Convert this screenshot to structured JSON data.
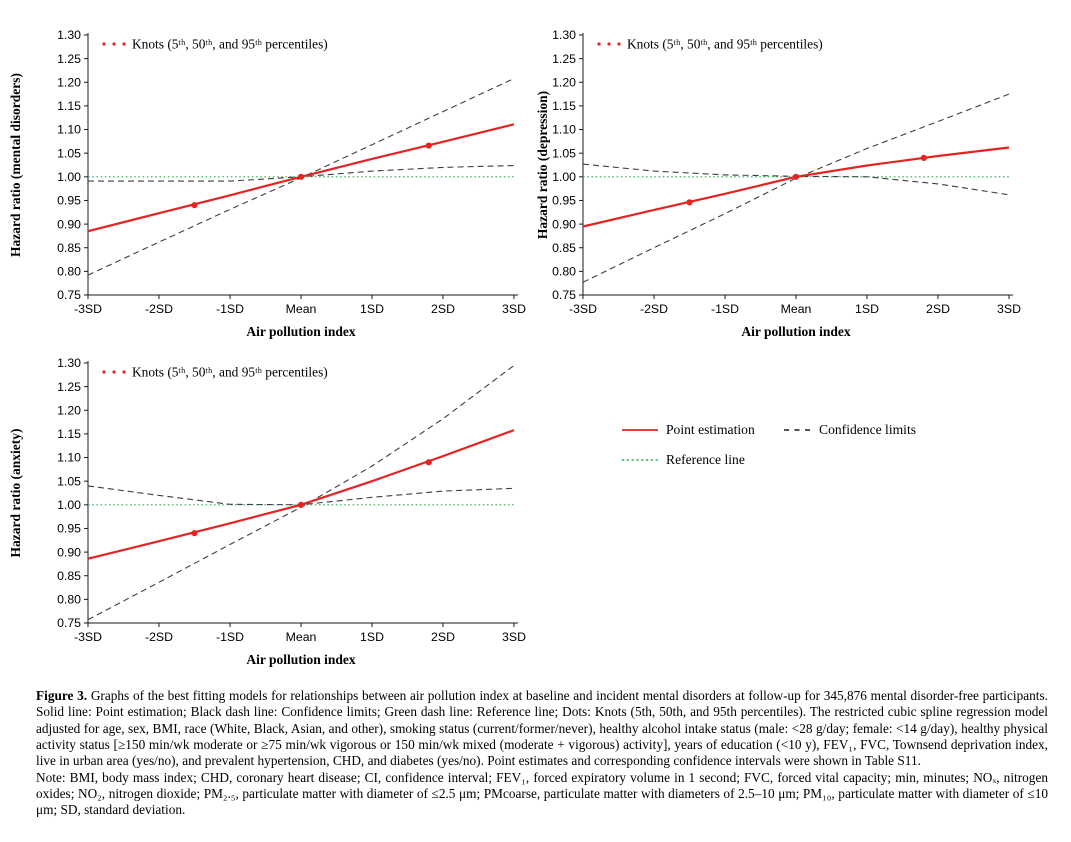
{
  "colors": {
    "point": "#e62320",
    "confidence": "#3f3f3f",
    "reference": "#2fae54",
    "axis": "#1a1a1a"
  },
  "legend": {
    "point_estimation": "Point estimation",
    "confidence_limits": "Confidence limits",
    "reference_line": "Reference line"
  },
  "caption": {
    "label": "Figure 3.",
    "body": "Graphs of the best fitting models for relationships between air pollution index at baseline and incident mental disorders at follow-up for 345,876 mental disorder-free participants. Solid line: Point estimation; Black dash line: Confidence limits; Green dash line: Reference line; Dots: Knots (5th, 50th, and 95th percentiles). The restricted cubic spline regression model adjusted for age, sex, BMI, race (White, Black, Asian, and other), smoking status (current/former/never), healthy alcohol intake status (male: <28 g/day; female: <14 g/day), healthy physical activity status [≥150 min/wk moderate or ≥75 min/wk vigorous or 150 min/wk mixed (moderate + vigorous) activity], years of education (<10 y), FEV₁, FVC, Townsend deprivation index, live in urban area (yes/no), and prevalent hypertension, CHD, and diabetes (yes/no). Point estimates and corresponding confidence intervals were shown in Table S11.",
    "note": "Note: BMI, body mass index; CHD, coronary heart disease; CI, confidence interval; FEV₁, forced expiratory volume in 1 second; FVC, forced vital capacity; min, minutes; NOₓ, nitrogen oxides; NO₂, nitrogen dioxide; PM₂.₅, particulate matter with diameter of ≤2.5 μm; PMcoarse, particulate matter with diameters of 2.5–10 μm; PM₁₀, particulate matter with diameter of ≤10 μm; SD, standard deviation."
  },
  "chart_data": [
    {
      "type": "line",
      "title": "",
      "ylabel": "Hazard ratio (mental disorders)",
      "xlabel": "Air pollution index",
      "x": [
        -3,
        -2,
        -1,
        0,
        1,
        2,
        3
      ],
      "x_tick_labels": [
        "-3SD",
        "-2SD",
        "-1SD",
        "Mean",
        "1SD",
        "2SD",
        "3SD"
      ],
      "ylim": [
        0.75,
        1.3
      ],
      "ytick_step": 0.05,
      "grid": false,
      "series": [
        {
          "name": "Point estimation",
          "style": "solid",
          "values": [
            0.885,
            0.923,
            0.961,
            1.0,
            1.038,
            1.074,
            1.111
          ]
        },
        {
          "name": "Confidence limit 1",
          "style": "dashed",
          "values": [
            0.792,
            0.862,
            0.931,
            0.998,
            1.068,
            1.138,
            1.208
          ]
        },
        {
          "name": "Confidence limit 2",
          "style": "dashed",
          "values": [
            0.991,
            0.991,
            0.991,
            1.0,
            1.012,
            1.02,
            1.024
          ]
        },
        {
          "name": "Reference line",
          "style": "dotted",
          "values": [
            1.0,
            1.0,
            1.0,
            1.0,
            1.0,
            1.0,
            1.0
          ]
        }
      ],
      "knots": {
        "label": "Knots (5ᵗʰ, 50ᵗʰ, and 95ᵗʰ percentiles)",
        "points": [
          {
            "x": -1.5,
            "y": 0.94
          },
          {
            "x": 0,
            "y": 1.0
          },
          {
            "x": 1.8,
            "y": 1.066
          }
        ]
      }
    },
    {
      "type": "line",
      "title": "",
      "ylabel": "Hazard ratio (depression)",
      "xlabel": "Air pollution index",
      "x": [
        -3,
        -2,
        -1,
        0,
        1,
        2,
        3
      ],
      "x_tick_labels": [
        "-3SD",
        "-2SD",
        "-1SD",
        "Mean",
        "1SD",
        "2SD",
        "3SD"
      ],
      "ylim": [
        0.75,
        1.3
      ],
      "ytick_step": 0.05,
      "grid": false,
      "series": [
        {
          "name": "Point estimation",
          "style": "solid",
          "values": [
            0.895,
            0.93,
            0.964,
            1.0,
            1.024,
            1.044,
            1.062
          ]
        },
        {
          "name": "Confidence limit 1",
          "style": "dashed",
          "values": [
            0.777,
            0.85,
            0.922,
            0.997,
            1.06,
            1.117,
            1.175
          ]
        },
        {
          "name": "Confidence limit 2",
          "style": "dashed",
          "values": [
            1.027,
            1.012,
            1.004,
            1.001,
            1.0,
            0.985,
            0.962
          ]
        },
        {
          "name": "Reference line",
          "style": "dotted",
          "values": [
            1.0,
            1.0,
            1.0,
            1.0,
            1.0,
            1.0,
            1.0
          ]
        }
      ],
      "knots": {
        "label": "Knots (5ᵗʰ, 50ᵗʰ, and 95ᵗʰ percentiles)",
        "points": [
          {
            "x": -1.5,
            "y": 0.946
          },
          {
            "x": 0,
            "y": 1.0
          },
          {
            "x": 1.8,
            "y": 1.04
          }
        ]
      }
    },
    {
      "type": "line",
      "title": "",
      "ylabel": "Hazard ratio (anxiety)",
      "xlabel": "Air pollution index",
      "x": [
        -3,
        -2,
        -1,
        0,
        1,
        2,
        3
      ],
      "x_tick_labels": [
        "-3SD",
        "-2SD",
        "-1SD",
        "Mean",
        "1SD",
        "2SD",
        "3SD"
      ],
      "ylim": [
        0.75,
        1.3
      ],
      "ytick_step": 0.05,
      "grid": false,
      "series": [
        {
          "name": "Point estimation",
          "style": "solid",
          "values": [
            0.886,
            0.923,
            0.961,
            1.0,
            1.05,
            1.103,
            1.158
          ]
        },
        {
          "name": "Confidence limit 1",
          "style": "dashed",
          "values": [
            0.757,
            0.836,
            0.916,
            0.995,
            1.082,
            1.182,
            1.295
          ]
        },
        {
          "name": "Confidence limit 2",
          "style": "dashed",
          "values": [
            1.04,
            1.02,
            1.001,
            1.0,
            1.016,
            1.029,
            1.035
          ]
        },
        {
          "name": "Reference line",
          "style": "dotted",
          "values": [
            1.0,
            1.0,
            1.0,
            1.0,
            1.0,
            1.0,
            1.0
          ]
        }
      ],
      "knots": {
        "label": "Knots (5ᵗʰ, 50ᵗʰ, and 95ᵗʰ percentiles)",
        "points": [
          {
            "x": -1.5,
            "y": 0.94
          },
          {
            "x": 0,
            "y": 1.0
          },
          {
            "x": 1.8,
            "y": 1.09
          }
        ]
      }
    }
  ]
}
